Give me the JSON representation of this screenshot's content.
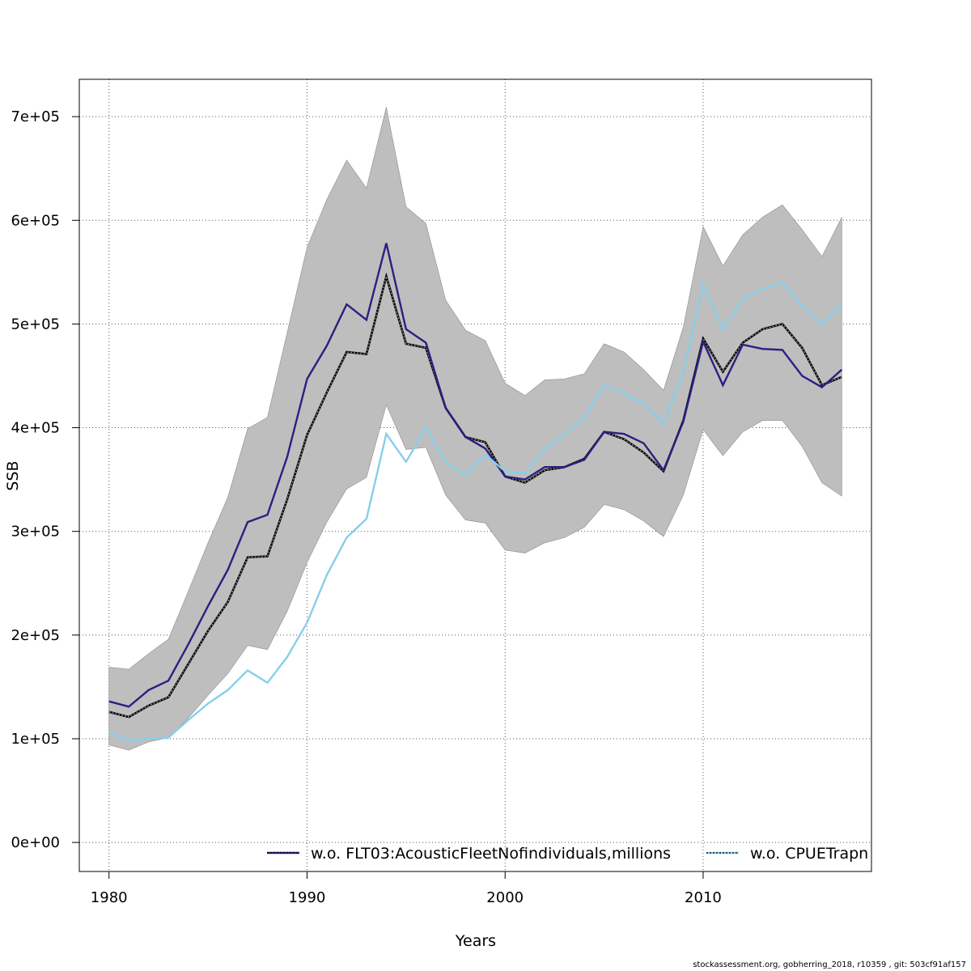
{
  "chart_data": {
    "type": "line",
    "xlabel": "Years",
    "ylabel": "SSB",
    "xlim": [
      1978.5,
      2018.5
    ],
    "ylim": [
      -28000,
      736000
    ],
    "x_ticks": [
      1980,
      1990,
      2000,
      2010
    ],
    "x_tick_labels": [
      "1980",
      "1990",
      "2000",
      "2010"
    ],
    "y_ticks": [
      0,
      100000,
      200000,
      300000,
      400000,
      500000,
      600000,
      700000
    ],
    "y_tick_labels": [
      "0e+00",
      "1e+05",
      "2e+05",
      "3e+05",
      "4e+05",
      "5e+05",
      "6e+05",
      "7e+05"
    ],
    "grid": true,
    "legend_position": "bottom",
    "years": [
      1980,
      1981,
      1982,
      1983,
      1984,
      1985,
      1986,
      1987,
      1988,
      1989,
      1990,
      1991,
      1992,
      1993,
      1994,
      1995,
      1996,
      1997,
      1998,
      1999,
      2000,
      2001,
      2002,
      2003,
      2004,
      2005,
      2006,
      2007,
      2008,
      2009,
      2010,
      2011,
      2012,
      2013,
      2014,
      2015,
      2016,
      2017
    ],
    "confidence_band": {
      "color": "#bebebe",
      "lower": [
        94000,
        89000,
        97000,
        101000,
        120000,
        142000,
        163000,
        190000,
        186000,
        223000,
        270000,
        309000,
        341000,
        352000,
        422000,
        379000,
        381000,
        335000,
        311000,
        308000,
        282000,
        279000,
        289000,
        294000,
        304000,
        326000,
        321000,
        310000,
        295000,
        335000,
        398000,
        373000,
        396000,
        407000,
        407000,
        382000,
        347000,
        334000
      ],
      "upper": [
        169000,
        167000,
        182000,
        196000,
        242000,
        289000,
        333000,
        399000,
        410000,
        492000,
        574000,
        620000,
        658000,
        631000,
        709000,
        613000,
        597000,
        523000,
        494000,
        484000,
        443000,
        431000,
        446000,
        447000,
        452000,
        481000,
        473000,
        456000,
        436000,
        497000,
        594000,
        556000,
        586000,
        603000,
        615000,
        591000,
        565000,
        603000
      ]
    },
    "series": [
      {
        "name": "w.o. FLT03:AcousticFleetNofindividuals,millions",
        "color": "#2c1f80",
        "values": [
          136000,
          131000,
          147000,
          156000,
          191000,
          228000,
          263000,
          309000,
          316000,
          372000,
          447000,
          479000,
          519000,
          504000,
          578000,
          495000,
          482000,
          419000,
          391000,
          380000,
          353000,
          350000,
          362000,
          362000,
          369000,
          396000,
          394000,
          385000,
          359000,
          406000,
          483000,
          441000,
          480000,
          476000,
          475000,
          450000,
          439000,
          456000
        ]
      },
      {
        "name": "w.o. CPUETrapn",
        "color": "#87ceeb",
        "values": [
          106000,
          98000,
          100000,
          101000,
          118000,
          134000,
          147000,
          166000,
          154000,
          179000,
          212000,
          258000,
          294000,
          312000,
          394000,
          367000,
          400000,
          367000,
          354000,
          374000,
          358000,
          356000,
          380000,
          393000,
          410000,
          441000,
          433000,
          423000,
          404000,
          454000,
          538000,
          495000,
          524000,
          534000,
          540000,
          518000,
          500000,
          519000
        ]
      }
    ],
    "base_run": {
      "color": "#000000",
      "values": [
        126000,
        121000,
        132000,
        140000,
        172000,
        204000,
        232000,
        275000,
        276000,
        331000,
        393000,
        434000,
        473000,
        471000,
        546000,
        481000,
        477000,
        419000,
        391000,
        386000,
        353000,
        347000,
        359000,
        362000,
        370000,
        396000,
        389000,
        376000,
        358000,
        407000,
        486000,
        454000,
        482000,
        495000,
        500000,
        477000,
        441000,
        449000
      ]
    }
  },
  "footer": {
    "text": "stockassessment.org, gobherring_2018, r10359 , git: 503cf91af157"
  }
}
